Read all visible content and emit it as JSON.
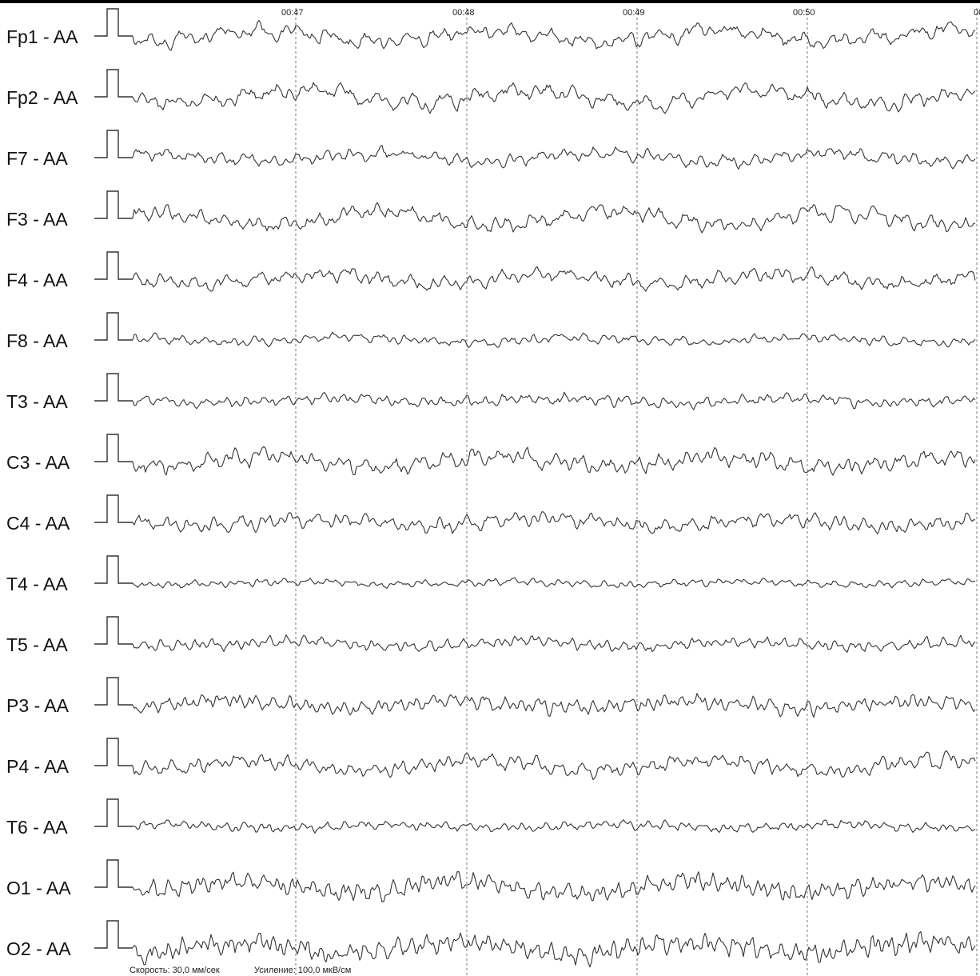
{
  "chart_data": {
    "type": "line",
    "montage_reference": "AA",
    "channels": [
      "Fp1 - AA",
      "Fp2 - AA",
      "F7 - AA",
      "F3 - AA",
      "F4 - AA",
      "F8 - AA",
      "T3 - AA",
      "C3 - AA",
      "C4 - AA",
      "T4 - AA",
      "T5 - AA",
      "P3 - AA",
      "P4 - AA",
      "T6 - AA",
      "O1 - AA",
      "O2 - AA"
    ],
    "time_markers": [
      "00:47",
      "00:48",
      "00:49",
      "00:50",
      "00"
    ],
    "x_unit": "seconds",
    "speed": "Скорость: 30,0 мм/сек",
    "gain": "Усиление: 100,0 мкВ/см",
    "grid": true,
    "colors": {
      "trace": "#333333",
      "label": "#111111",
      "grid": "#777777",
      "background": "#ffffff"
    }
  }
}
